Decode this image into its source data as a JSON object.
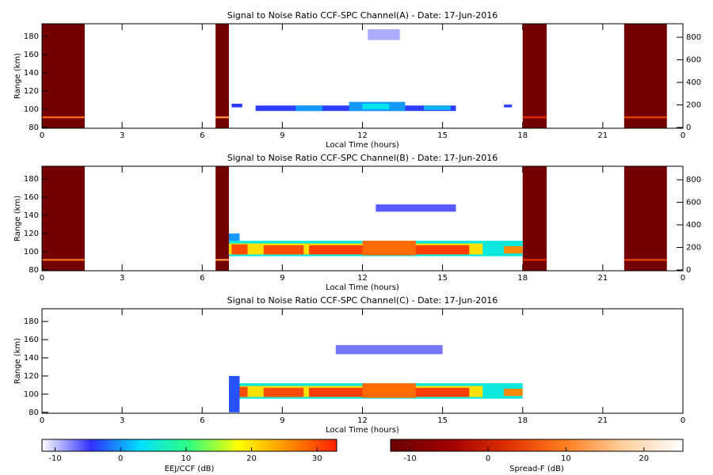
{
  "chart_data": [
    {
      "type": "heatmap",
      "title": "Signal to Noise Ratio CCF-SPC Channel(A) - Date: 17-Jun-2016",
      "xlabel": "Local Time (hours)",
      "ylabel": "Range (km)",
      "xlim": [
        0,
        24
      ],
      "xticks": [
        0,
        3,
        6,
        9,
        12,
        15,
        18,
        21,
        {
          "value": 24,
          "label": "0"
        }
      ],
      "ylim": [
        79,
        194
      ],
      "yticks": [
        80,
        100,
        120,
        140,
        160,
        180
      ],
      "y2lim": [
        -7,
        920
      ],
      "y2ticks": [
        0,
        200,
        400,
        600,
        800
      ],
      "spread_f": [
        {
          "x": [
            0,
            1.6
          ],
          "y": [
            79,
            194
          ],
          "value": -11
        },
        {
          "x": [
            0,
            1.6
          ],
          "y": [
            90,
            92
          ],
          "value": 8
        },
        {
          "x": [
            6.5,
            7
          ],
          "y": [
            79,
            194
          ],
          "value": -11
        },
        {
          "x": [
            6.5,
            7
          ],
          "y": [
            90,
            92
          ],
          "value": 12
        },
        {
          "x": [
            18,
            18.9
          ],
          "y": [
            79,
            194
          ],
          "value": -11
        },
        {
          "x": [
            18,
            18.9
          ],
          "y": [
            90,
            92
          ],
          "value": 2
        },
        {
          "x": [
            21.8,
            23.4
          ],
          "y": [
            79,
            194
          ],
          "value": -11
        },
        {
          "x": [
            21.8,
            23.4
          ],
          "y": [
            90,
            92
          ],
          "value": 4
        }
      ],
      "cells": [
        {
          "x": [
            7.1,
            7.5
          ],
          "y": [
            102,
            106
          ],
          "value": -4
        },
        {
          "x": [
            8,
            15.5
          ],
          "y": [
            98,
            104
          ],
          "value": -4
        },
        {
          "x": [
            9.5,
            10.5
          ],
          "y": [
            98,
            104
          ],
          "value": 0
        },
        {
          "x": [
            11.5,
            13.6
          ],
          "y": [
            98,
            108
          ],
          "value": 0
        },
        {
          "x": [
            12,
            13
          ],
          "y": [
            100,
            106
          ],
          "value": 4
        },
        {
          "x": [
            14.3,
            15.3
          ],
          "y": [
            99,
            104
          ],
          "value": 1
        },
        {
          "x": [
            12.2,
            13.4
          ],
          "y": [
            176,
            188
          ],
          "value": -9
        },
        {
          "x": [
            17.3,
            17.6
          ],
          "y": [
            102,
            105
          ],
          "value": -4
        }
      ]
    },
    {
      "type": "heatmap",
      "title": "Signal to Noise Ratio CCF-SPC Channel(B) - Date: 17-Jun-2016",
      "xlabel": "Local Time (hours)",
      "ylabel": "Range (km)",
      "xlim": [
        0,
        24
      ],
      "xticks": [
        0,
        3,
        6,
        9,
        12,
        15,
        18,
        21,
        {
          "value": 24,
          "label": "0"
        }
      ],
      "ylim": [
        79,
        194
      ],
      "yticks": [
        80,
        100,
        120,
        140,
        160,
        180
      ],
      "y2lim": [
        -7,
        920
      ],
      "y2ticks": [
        0,
        200,
        400,
        600,
        800
      ],
      "spread_f": [
        {
          "x": [
            0,
            1.6
          ],
          "y": [
            79,
            194
          ],
          "value": -11
        },
        {
          "x": [
            0,
            1.6
          ],
          "y": [
            90,
            92
          ],
          "value": 8
        },
        {
          "x": [
            6.5,
            7
          ],
          "y": [
            79,
            194
          ],
          "value": -11
        },
        {
          "x": [
            6.5,
            7
          ],
          "y": [
            90,
            92
          ],
          "value": 12
        },
        {
          "x": [
            18,
            18.9
          ],
          "y": [
            79,
            194
          ],
          "value": -11
        },
        {
          "x": [
            18,
            18.9
          ],
          "y": [
            90,
            92
          ],
          "value": 2
        },
        {
          "x": [
            21.8,
            23.4
          ],
          "y": [
            79,
            194
          ],
          "value": -11
        },
        {
          "x": [
            21.8,
            23.4
          ],
          "y": [
            90,
            92
          ],
          "value": 4
        }
      ],
      "cells": [
        {
          "x": [
            7,
            18
          ],
          "y": [
            95,
            112
          ],
          "value": 5
        },
        {
          "x": [
            7,
            16.5
          ],
          "y": [
            97,
            109
          ],
          "value": 20
        },
        {
          "x": [
            7.1,
            7.7
          ],
          "y": [
            97,
            108
          ],
          "value": 30
        },
        {
          "x": [
            8.3,
            9.8
          ],
          "y": [
            97,
            107
          ],
          "value": 30
        },
        {
          "x": [
            10,
            16
          ],
          "y": [
            97,
            107
          ],
          "value": 31
        },
        {
          "x": [
            12,
            14
          ],
          "y": [
            96,
            112
          ],
          "value": 28
        },
        {
          "x": [
            17.3,
            18
          ],
          "y": [
            98,
            106
          ],
          "value": 26
        },
        {
          "x": [
            12.5,
            15.5
          ],
          "y": [
            144,
            152
          ],
          "value": -6
        },
        {
          "x": [
            7,
            7.4
          ],
          "y": [
            112,
            120
          ],
          "value": 0
        }
      ]
    },
    {
      "type": "heatmap",
      "title": "Signal to Noise Ratio CCF-SPC Channel(C) - Date: 17-Jun-2016",
      "xlabel": "Local Time (hours)",
      "ylabel": "Range (km)",
      "xlim": [
        0,
        24
      ],
      "xticks": [
        0,
        3,
        6,
        9,
        12,
        15,
        18,
        21,
        {
          "value": 24,
          "label": "0"
        }
      ],
      "ylim": [
        79,
        194
      ],
      "yticks": [
        80,
        100,
        120,
        140,
        160,
        180
      ],
      "cells": [
        {
          "x": [
            7,
            18
          ],
          "y": [
            95,
            112
          ],
          "value": 5
        },
        {
          "x": [
            7,
            16.5
          ],
          "y": [
            97,
            109
          ],
          "value": 20
        },
        {
          "x": [
            7.1,
            7.7
          ],
          "y": [
            97,
            108
          ],
          "value": 30
        },
        {
          "x": [
            8.3,
            9.8
          ],
          "y": [
            97,
            107
          ],
          "value": 30
        },
        {
          "x": [
            10,
            16
          ],
          "y": [
            97,
            107
          ],
          "value": 31
        },
        {
          "x": [
            12,
            14
          ],
          "y": [
            96,
            112
          ],
          "value": 28
        },
        {
          "x": [
            17.3,
            18
          ],
          "y": [
            98,
            106
          ],
          "value": 26
        },
        {
          "x": [
            11,
            15
          ],
          "y": [
            144,
            154
          ],
          "value": -7
        },
        {
          "x": [
            7,
            7.4
          ],
          "y": [
            80,
            120
          ],
          "value": -3
        }
      ]
    },
    {
      "type": "colorbar",
      "label": "EEJ/CCF (dB)",
      "lim": [
        -12,
        33
      ],
      "ticks": [
        -10,
        0,
        10,
        20,
        30
      ],
      "colors": [
        "#ffffff",
        "#3030ff",
        "#00e0ff",
        "#30ff80",
        "#ffff00",
        "#ff9000",
        "#ff2000"
      ]
    },
    {
      "type": "colorbar",
      "label": "Spread-F (dB)",
      "lim": [
        -12.5,
        25
      ],
      "ticks": [
        -10,
        0,
        10,
        20
      ],
      "colors": [
        "#6a0000",
        "#a00000",
        "#e03000",
        "#ff8020",
        "#ffd0a0",
        "#ffffff"
      ]
    }
  ]
}
